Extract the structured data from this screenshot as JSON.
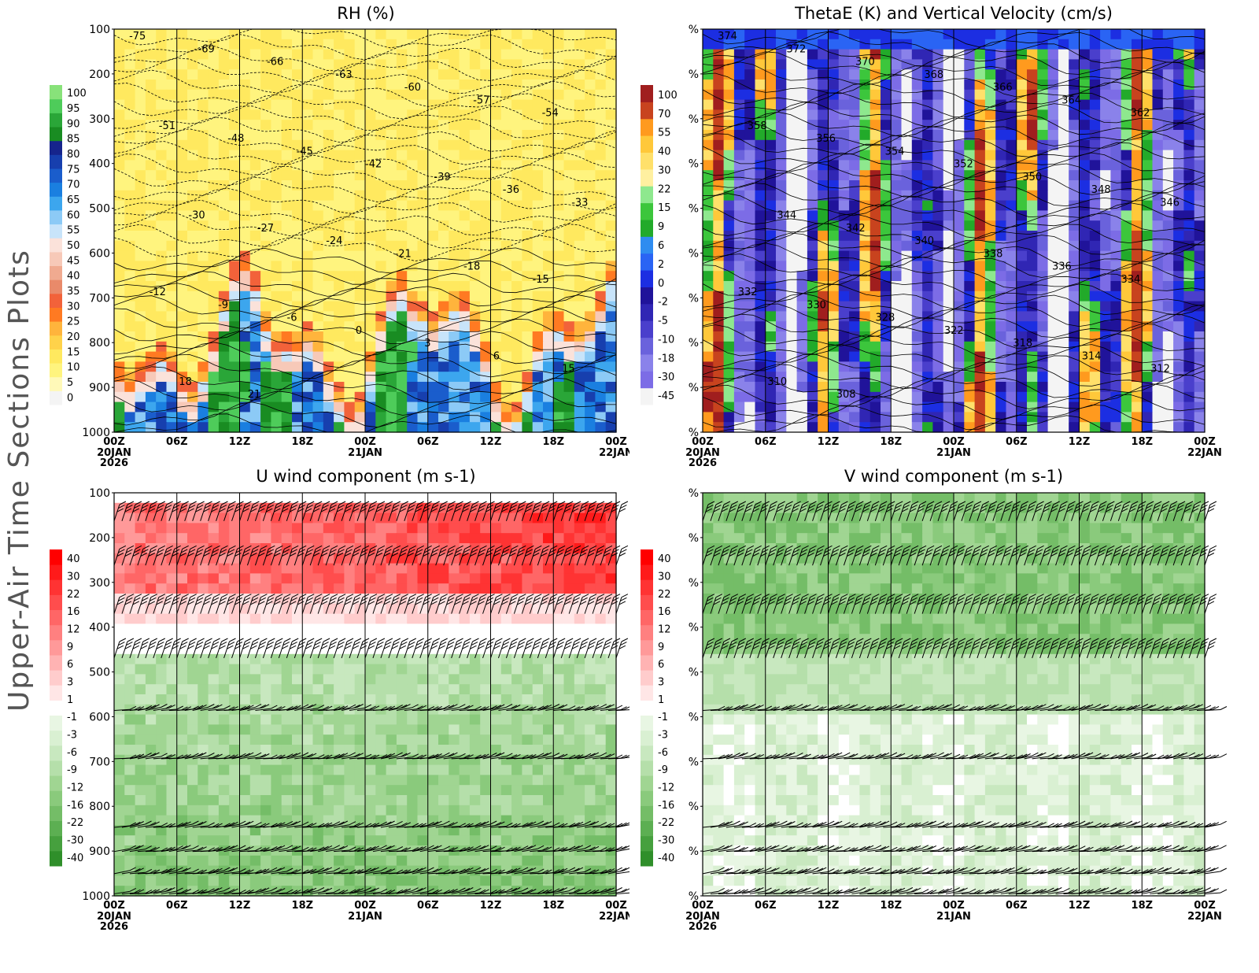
{
  "page": {
    "side_title": "Upper-Air Time Sections Plots"
  },
  "time_axis": {
    "ticks": [
      "00Z",
      "06Z",
      "12Z",
      "18Z",
      "00Z",
      "06Z",
      "12Z",
      "18Z",
      "00Z"
    ],
    "dates": [
      {
        "at": 0,
        "lines": [
          "20JAN",
          "2026"
        ]
      },
      {
        "at": 4,
        "lines": [
          "21JAN"
        ]
      },
      {
        "at": 8,
        "lines": [
          "22JAN"
        ]
      }
    ]
  },
  "pressure_axis": {
    "ticks": [
      "100",
      "200",
      "300",
      "400",
      "500",
      "600",
      "700",
      "800",
      "900",
      "1000"
    ],
    "percent_ticks": [
      "%",
      "%",
      "%",
      "%",
      "%",
      "%",
      "%",
      "%",
      "%",
      "%"
    ]
  },
  "colors": {
    "rh_scale": [
      "#f4f4f4",
      "#fff9b8",
      "#fff47e",
      "#ffe95f",
      "#ffd24a",
      "#ffb43c",
      "#ff7a22",
      "#f2623a",
      "#e98a6a",
      "#f0aa90",
      "#f7c9b8",
      "#fbe2da",
      "#c8e4fa",
      "#8ccaf6",
      "#3ca6ee",
      "#1a7fe0",
      "#1a5dcc",
      "#173fae",
      "#16248c",
      "#198c22",
      "#2aa638",
      "#4ecc5a",
      "#88e27a"
    ],
    "thetae_scale": [
      "#f4f4f4",
      "#7c6ce6",
      "#8a82ea",
      "#6a62dc",
      "#4a3fcc",
      "#3026b4",
      "#20139a",
      "#1c2ee2",
      "#2a64f4",
      "#2f8cf0",
      "#22aa2a",
      "#3cc63c",
      "#8ee88e",
      "#fff0a0",
      "#ffe06a",
      "#ffc83a",
      "#ff9a1e",
      "#c8431e",
      "#a01e1e"
    ],
    "u_scale": [
      "#2f8f2a",
      "#46a03e",
      "#5caf52",
      "#74bd67",
      "#8aca7c",
      "#a0d592",
      "#b5dfaa",
      "#c8e8bf",
      "#d9f0d2",
      "#e8f6e3",
      "#ffffff",
      "#ffe6e6",
      "#ffcccc",
      "#ffb3b3",
      "#ff9999",
      "#ff8080",
      "#ff6666",
      "#ff4d4d",
      "#ff3333",
      "#ff1a1a",
      "#ff0000"
    ]
  },
  "panels": [
    {
      "id": "rh",
      "title": "RH (%)",
      "colorbar_labels": [
        "100",
        "95",
        "90",
        "85",
        "80",
        "75",
        "70",
        "65",
        "60",
        "55",
        "50",
        "45",
        "40",
        "35",
        "30",
        "25",
        "20",
        "15",
        "10",
        "5",
        "0"
      ],
      "contour_labels": [
        "-75",
        "-69",
        "-66",
        "-63",
        "-60",
        "-57",
        "-54",
        "-51",
        "-48",
        "-45",
        "-42",
        "-39",
        "-36",
        "-33",
        "-30",
        "-27",
        "-24",
        "-21",
        "-18",
        "-15",
        "-12",
        "-9",
        "-6",
        "0",
        "3",
        "6",
        "15",
        "18",
        "21"
      ]
    },
    {
      "id": "thetae",
      "title": "ThetaE (K) and Vertical Velocity (cm/s)",
      "colorbar_labels": [
        "100",
        "70",
        "55",
        "40",
        "30",
        "22",
        "15",
        "9",
        "6",
        "2",
        "0",
        "-2",
        "-5",
        "-10",
        "-18",
        "-30",
        "-45"
      ],
      "contour_labels": [
        "374",
        "372",
        "370",
        "368",
        "366",
        "364",
        "362",
        "358",
        "356",
        "354",
        "352",
        "350",
        "348",
        "346",
        "344",
        "342",
        "340",
        "338",
        "336",
        "334",
        "332",
        "330",
        "328",
        "322",
        "318",
        "314",
        "312",
        "310",
        "308"
      ]
    },
    {
      "id": "u",
      "title": "U wind component (m s-1)",
      "colorbar_labels": [
        "40",
        "30",
        "22",
        "16",
        "12",
        "9",
        "6",
        "3",
        "1",
        "-1",
        "-3",
        "-6",
        "-9",
        "-12",
        "-16",
        "-22",
        "-30",
        "-40"
      ]
    },
    {
      "id": "v",
      "title": "V wind component (m s-1)",
      "colorbar_labels": [
        "40",
        "30",
        "22",
        "16",
        "12",
        "9",
        "6",
        "3",
        "1",
        "-1",
        "-3",
        "-6",
        "-9",
        "-12",
        "-16",
        "-22",
        "-30",
        "-40"
      ]
    }
  ]
}
